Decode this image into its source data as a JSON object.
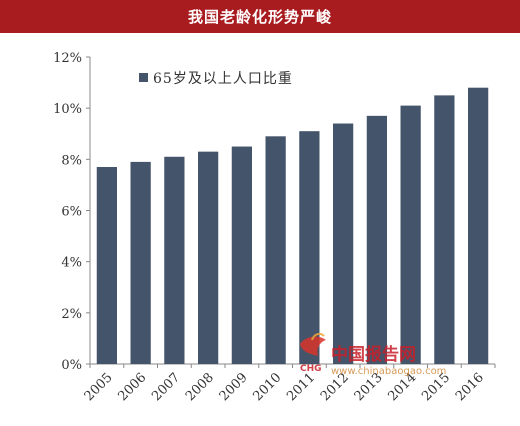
{
  "chart_data": {
    "type": "bar",
    "title": "我国老龄化形势严峻",
    "categories": [
      "2005",
      "2006",
      "2007",
      "2008",
      "2009",
      "2010",
      "2011",
      "2012",
      "2013",
      "2014",
      "2015",
      "2016"
    ],
    "series": [
      {
        "name": "65岁及以上人口比重",
        "values": [
          7.7,
          7.9,
          8.1,
          8.3,
          8.5,
          8.9,
          9.1,
          9.4,
          9.7,
          10.1,
          10.5,
          10.8
        ],
        "color": "#44546a"
      }
    ],
    "ylim": [
      0,
      12
    ],
    "yticks": [
      "0%",
      "2%",
      "4%",
      "6%",
      "8%",
      "10%",
      "12%"
    ],
    "xlabel": "",
    "ylabel": "",
    "grid": false,
    "legend_position": "top-left"
  },
  "watermark": {
    "brand": "中国报告网",
    "url": "www.chinabaogao.com",
    "logo_text": "CHG"
  }
}
